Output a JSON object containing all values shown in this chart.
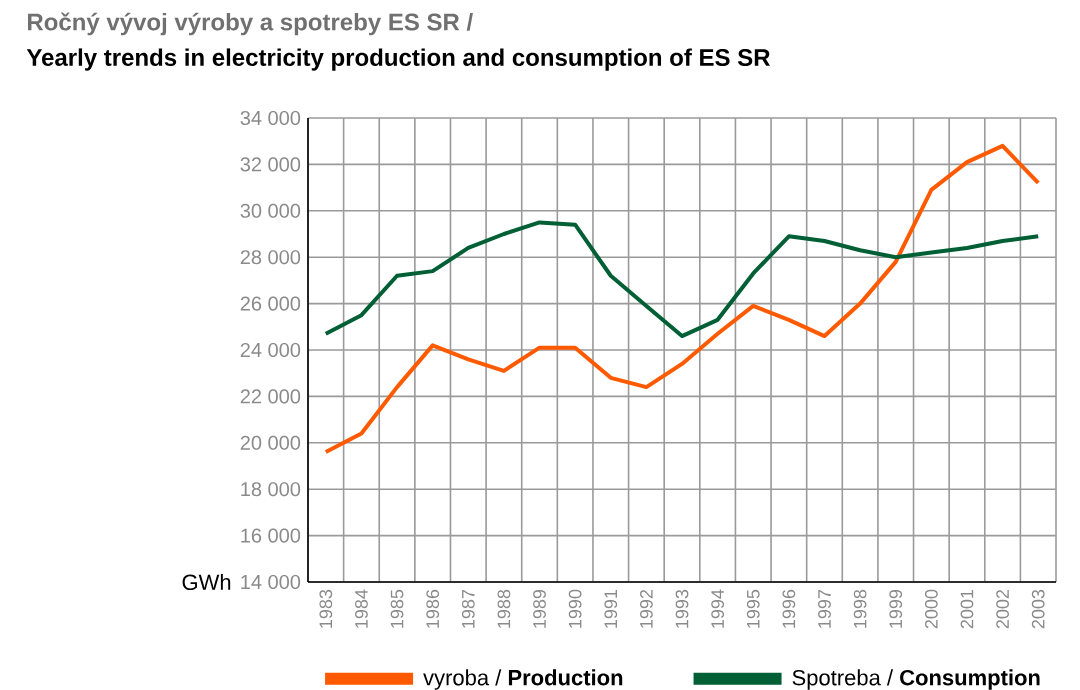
{
  "chart_data": {
    "type": "line",
    "title": "Ročný vývoj výroby a spotreby ES SR /",
    "subtitle": "Yearly trends in electricity production and consumption of  ES SR",
    "ylabel": "GWh",
    "categories": [
      "1983",
      "1984",
      "1985",
      "1986",
      "1987",
      "1988",
      "1989",
      "1990",
      "1991",
      "1992",
      "1993",
      "1994",
      "1995",
      "1996",
      "1997",
      "1998",
      "1999",
      "2000",
      "2001",
      "2002",
      "2003"
    ],
    "series": [
      {
        "name": "vyroba / **Production**",
        "color": "#ff5a00",
        "values": [
          19600,
          20400,
          22400,
          24200,
          23600,
          23100,
          24100,
          24100,
          22800,
          22400,
          23400,
          24700,
          25900,
          25300,
          24600,
          26000,
          27800,
          30900,
          32100,
          32800,
          31200
        ]
      },
      {
        "name": "Spotreba / **Consumption**",
        "color": "#005f35",
        "values": [
          24700,
          25500,
          27200,
          27400,
          28400,
          29000,
          29500,
          29400,
          27200,
          25900,
          24600,
          25300,
          27300,
          28900,
          28700,
          28300,
          28000,
          28200,
          28400,
          28700,
          28900
        ]
      }
    ],
    "ylim": [
      14000,
      34000
    ],
    "yticks": [
      {
        "value": 14000,
        "label": "14 000"
      },
      {
        "value": 16000,
        "label": "16 000"
      },
      {
        "value": 18000,
        "label": "18 000"
      },
      {
        "value": 20000,
        "label": "20 000"
      },
      {
        "value": 22000,
        "label": "22 000"
      },
      {
        "value": 24000,
        "label": "24 000"
      },
      {
        "value": 26000,
        "label": "26 000"
      },
      {
        "value": 28000,
        "label": "28 000"
      },
      {
        "value": 30000,
        "label": "30 000"
      },
      {
        "value": 32000,
        "label": "32 000"
      },
      {
        "value": 34000,
        "label": "34 000"
      }
    ],
    "grid": true,
    "legend": "bottom",
    "marker": "none",
    "line_style": "solid"
  }
}
